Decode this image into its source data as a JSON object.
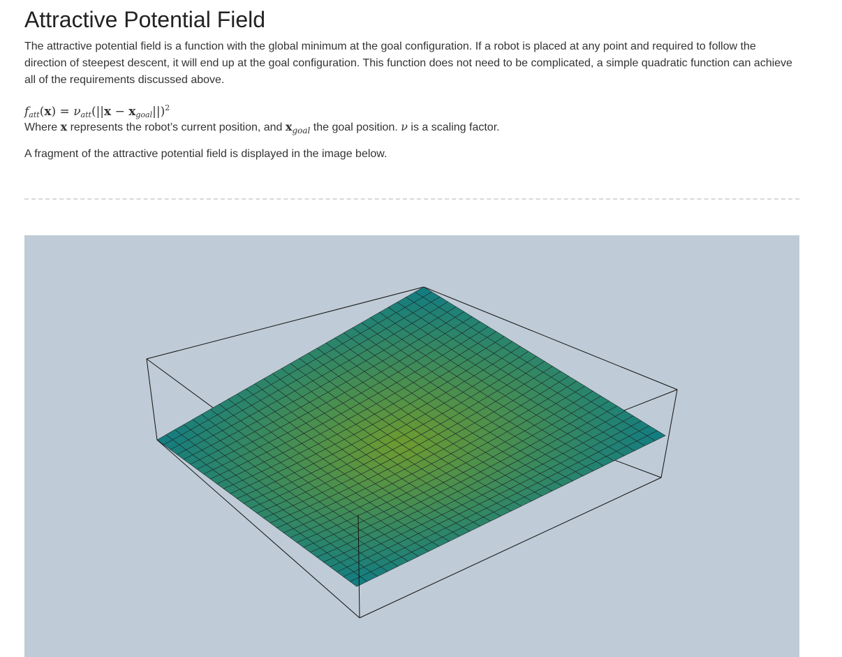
{
  "page": {
    "title": "Attractive Potential Field",
    "intro": "The attractive potential field is a function with the global minimum at the goal configuration. If a robot is placed at any point and required to follow the direction of steepest descent, it will end up at the goal configuration. This function does not need to be complicated, a simple quadratic function can achieve all of the requirements discussed above.",
    "fragment_text": "A fragment of the attractive potential field is displayed in the image below."
  },
  "formula": {
    "f": "f",
    "f_sub": "att",
    "open": "(",
    "x": "x",
    "close": ")",
    "eq": " = ",
    "nu": "ν",
    "nu_sub": "att",
    "norm_open": "(||",
    "minus": " − ",
    "x_goal": "x",
    "goal_sub": "goal",
    "norm_close": "||)",
    "exp": "2"
  },
  "where": {
    "part1": "Where ",
    "x": "x",
    "part2": " represents the robot’s current position, and ",
    "x_goal": "x",
    "goal_sub": "goal",
    "part3": " the goal position. ",
    "nu": "ν",
    "part4": " is a scaling factor."
  },
  "plot": {
    "background_color": "#bfcbd6",
    "surface_center_color": "#6e9b2f",
    "surface_edge_color": "#117c82",
    "grid_divisions": 30,
    "surface": "quadratic bowl, minimum at center"
  }
}
